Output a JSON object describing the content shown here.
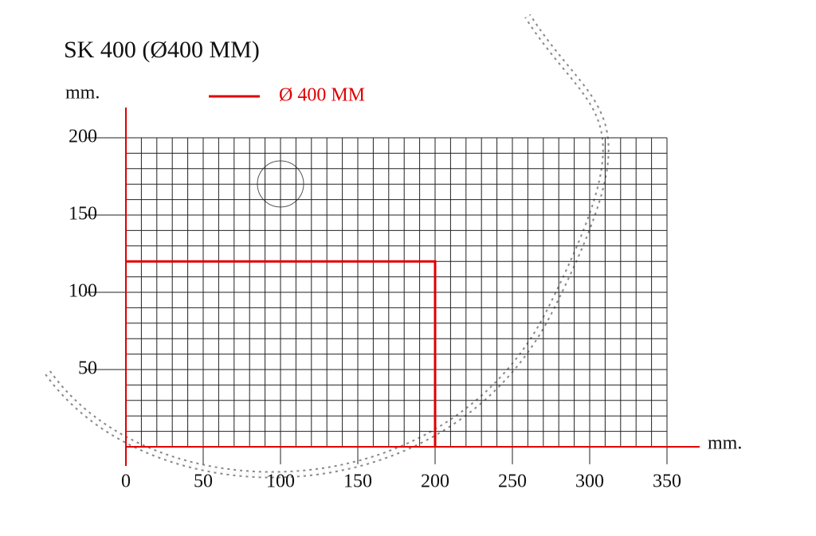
{
  "chart_data": {
    "type": "line",
    "title": "SK 400 (Ø400 MM)",
    "y_label": "mm.",
    "x_label": "mm.",
    "series": [
      {
        "name": "Ø 400 MM",
        "color": "#e00000",
        "x": [
          0,
          200,
          200
        ],
        "values": [
          120,
          120,
          0
        ]
      }
    ],
    "xlim": [
      0,
      350
    ],
    "ylim": [
      0,
      200
    ],
    "xticks": [
      0,
      50,
      100,
      150,
      200,
      250,
      300,
      350
    ],
    "yticks": [
      50,
      100,
      150,
      200
    ],
    "grid": true,
    "grid_spacing": 10
  }
}
